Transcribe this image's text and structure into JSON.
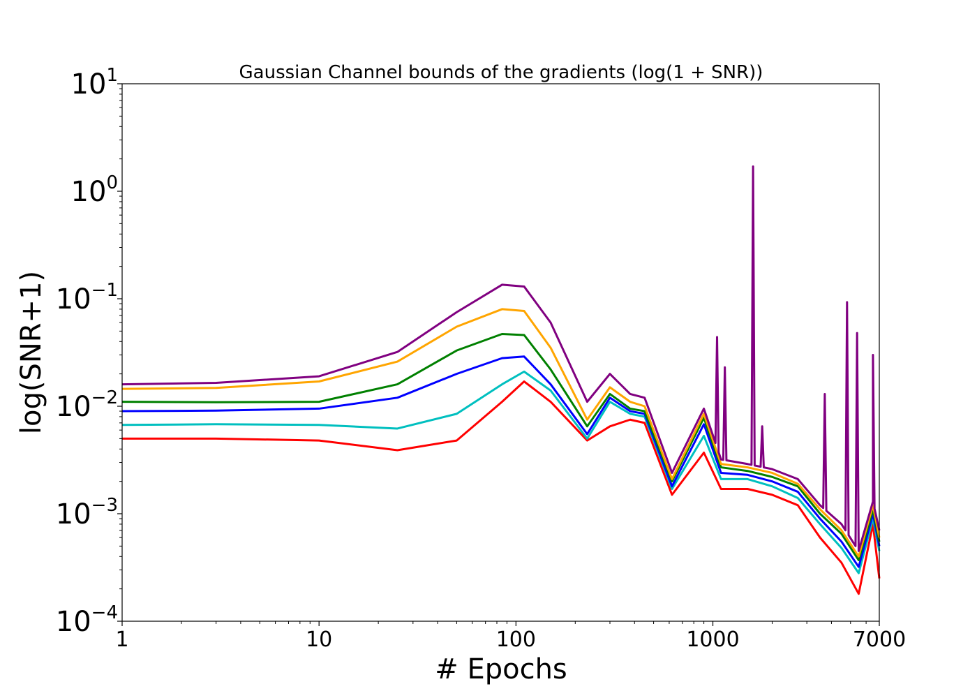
{
  "chart_data": {
    "type": "line",
    "title": "Gaussian Channel bounds of the gradients (log(1 + SNR))",
    "xlabel": "# Epochs",
    "ylabel": "log(SNR+1)",
    "xscale": "log",
    "yscale": "log",
    "xlim": [
      1,
      7000
    ],
    "ylim": [
      0.0001,
      10
    ],
    "grid": false,
    "legend": "none",
    "xticks": [
      {
        "value": 1,
        "label": "1"
      },
      {
        "value": 10,
        "label": "10"
      },
      {
        "value": 100,
        "label": "100"
      },
      {
        "value": 1000,
        "label": "1000"
      },
      {
        "value": 7000,
        "label": "7000"
      }
    ],
    "yticks": [
      {
        "value": 10,
        "base": "10",
        "exp": "1"
      },
      {
        "value": 1,
        "base": "10",
        "exp": "0"
      },
      {
        "value": 0.1,
        "base": "10",
        "exp": "−1"
      },
      {
        "value": 0.01,
        "base": "10",
        "exp": "−2"
      },
      {
        "value": 0.001,
        "base": "10",
        "exp": "−3"
      },
      {
        "value": 0.0001,
        "base": "10",
        "exp": "−4"
      }
    ],
    "x": [
      1,
      3,
      10,
      25,
      50,
      85,
      110,
      150,
      230,
      300,
      380,
      450,
      620,
      900,
      1100,
      1500,
      2000,
      2700,
      3500,
      4500,
      5500,
      6500,
      7000
    ],
    "series": [
      {
        "color": "#800080",
        "values": [
          0.016,
          0.0165,
          0.019,
          0.032,
          0.075,
          0.135,
          0.13,
          0.06,
          0.011,
          0.02,
          0.013,
          0.012,
          0.0024,
          0.0095,
          0.0032,
          0.0029,
          0.0026,
          0.0021,
          0.0012,
          0.0008,
          0.00045,
          0.0013,
          0.0007
        ],
        "spikes": [
          {
            "x": 1050,
            "y": 0.044
          },
          {
            "x": 1150,
            "y": 0.023
          },
          {
            "x": 1600,
            "y": 1.7
          },
          {
            "x": 1780,
            "y": 0.0065
          },
          {
            "x": 3700,
            "y": 0.013
          },
          {
            "x": 4800,
            "y": 0.093
          },
          {
            "x": 5400,
            "y": 0.048
          },
          {
            "x": 6500,
            "y": 0.03
          }
        ]
      },
      {
        "color": "#FFA500",
        "values": [
          0.0145,
          0.0148,
          0.017,
          0.026,
          0.055,
          0.08,
          0.077,
          0.035,
          0.0075,
          0.015,
          0.011,
          0.01,
          0.0021,
          0.0085,
          0.0029,
          0.0027,
          0.0024,
          0.0019,
          0.0011,
          0.0007,
          0.0004,
          0.0012,
          0.0006
        ],
        "spikes": []
      },
      {
        "color": "#008000",
        "values": [
          0.011,
          0.0109,
          0.011,
          0.016,
          0.033,
          0.047,
          0.046,
          0.022,
          0.0065,
          0.013,
          0.0095,
          0.009,
          0.002,
          0.0078,
          0.0027,
          0.0025,
          0.0022,
          0.0018,
          0.001,
          0.00065,
          0.00037,
          0.0011,
          0.00055
        ],
        "spikes": []
      },
      {
        "color": "#0000FF",
        "values": [
          0.009,
          0.0091,
          0.0095,
          0.012,
          0.02,
          0.028,
          0.029,
          0.016,
          0.0055,
          0.012,
          0.009,
          0.0085,
          0.0018,
          0.0068,
          0.0024,
          0.0023,
          0.002,
          0.0016,
          0.0009,
          0.00055,
          0.00032,
          0.001,
          0.0005
        ],
        "spikes": []
      },
      {
        "color": "#00BFBF",
        "values": [
          0.0067,
          0.0068,
          0.0067,
          0.0062,
          0.0085,
          0.016,
          0.021,
          0.014,
          0.005,
          0.011,
          0.0085,
          0.008,
          0.0017,
          0.0053,
          0.0021,
          0.0021,
          0.0018,
          0.0014,
          0.0008,
          0.00048,
          0.00028,
          0.0009,
          0.00045
        ],
        "spikes": []
      },
      {
        "color": "#FF0000",
        "values": [
          0.005,
          0.005,
          0.0048,
          0.0039,
          0.0048,
          0.011,
          0.017,
          0.011,
          0.0048,
          0.0065,
          0.0075,
          0.007,
          0.0015,
          0.0037,
          0.0017,
          0.0017,
          0.0015,
          0.0012,
          0.0006,
          0.00035,
          0.00018,
          0.0008,
          0.00025
        ],
        "spikes": []
      }
    ]
  }
}
